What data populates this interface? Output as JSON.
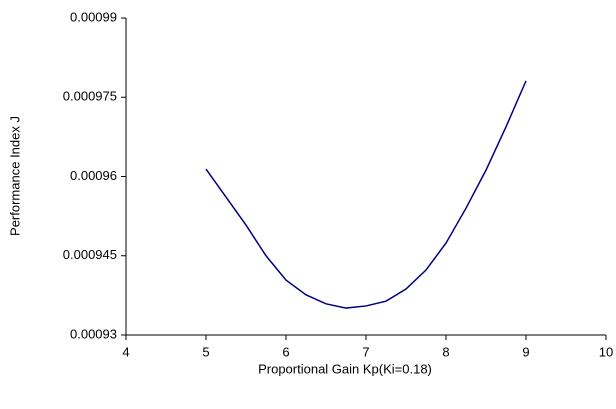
{
  "chart_data": {
    "type": "line",
    "x_label": "Proportional Gain Kp(Ki=0.18)",
    "y_label": "Performance Index J",
    "x": [
      5,
      5.25,
      5.5,
      5.75,
      6,
      6.25,
      6.5,
      6.75,
      7,
      7.25,
      7.5,
      7.75,
      8,
      8.25,
      8.5,
      8.75,
      9
    ],
    "series": [
      {
        "color": "#000080",
        "values": [
          0.0009614,
          0.0009561,
          0.0009508,
          0.000945,
          0.0009404,
          0.0009376,
          0.0009359,
          0.0009351,
          0.0009355,
          0.0009364,
          0.0009387,
          0.0009423,
          0.0009474,
          0.000954,
          0.0009612,
          0.0009694,
          0.0009781
        ]
      }
    ],
    "xlim": [
      4,
      10
    ],
    "xticks": [
      4,
      5,
      6,
      7,
      8,
      9,
      10
    ],
    "ylim": [
      0.00093,
      0.00099
    ],
    "yticks": [
      0.00093,
      0.000945,
      0.00096,
      0.000975,
      0.00099
    ],
    "grid": false
  }
}
